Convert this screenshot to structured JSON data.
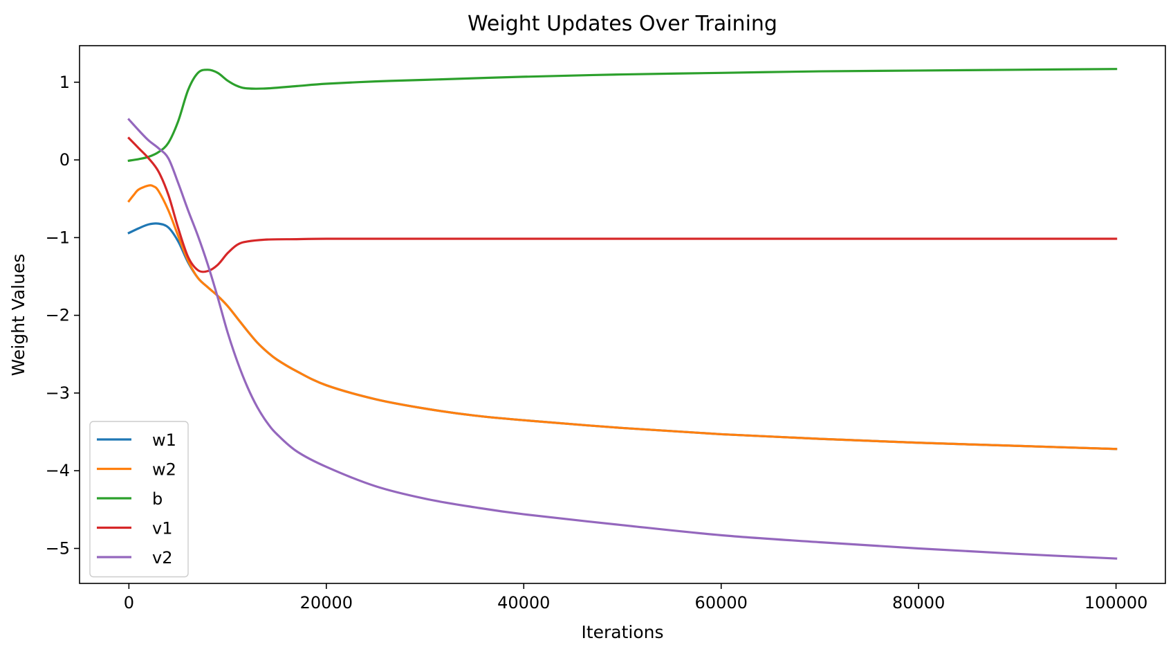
{
  "chart_data": {
    "type": "line",
    "title": "Weight Updates Over Training",
    "xlabel": "Iterations",
    "ylabel": "Weight Values",
    "xlim": [
      -5000,
      105000
    ],
    "ylim": [
      -5.45,
      1.47
    ],
    "x_ticks": [
      0,
      20000,
      40000,
      60000,
      80000,
      100000
    ],
    "x_tick_labels": [
      "0",
      "20000",
      "40000",
      "60000",
      "80000",
      "100000"
    ],
    "y_ticks": [
      1,
      0,
      -1,
      -2,
      -3,
      -4,
      -5
    ],
    "y_tick_labels": [
      "1",
      "0",
      "−1",
      "−2",
      "−3",
      "−4",
      "−5"
    ],
    "grid": false,
    "legend_position": "lower left",
    "series": [
      {
        "name": "w1",
        "color": "#1f77b4",
        "points": [
          [
            0,
            -0.94
          ],
          [
            1000,
            -0.88
          ],
          [
            2000,
            -0.83
          ],
          [
            3000,
            -0.82
          ],
          [
            4000,
            -0.87
          ],
          [
            5000,
            -1.05
          ],
          [
            6000,
            -1.32
          ],
          [
            7000,
            -1.52
          ],
          [
            8000,
            -1.64
          ],
          [
            9000,
            -1.75
          ],
          [
            10000,
            -1.88
          ],
          [
            11000,
            -2.04
          ],
          [
            12000,
            -2.2
          ],
          [
            13000,
            -2.35
          ],
          [
            14000,
            -2.47
          ],
          [
            15000,
            -2.57
          ],
          [
            17000,
            -2.72
          ],
          [
            20000,
            -2.9
          ],
          [
            25000,
            -3.08
          ],
          [
            30000,
            -3.2
          ],
          [
            35000,
            -3.29
          ],
          [
            40000,
            -3.35
          ],
          [
            50000,
            -3.45
          ],
          [
            60000,
            -3.53
          ],
          [
            70000,
            -3.59
          ],
          [
            80000,
            -3.64
          ],
          [
            90000,
            -3.68
          ],
          [
            100000,
            -3.72
          ]
        ]
      },
      {
        "name": "w2",
        "color": "#ff7f0e",
        "points": [
          [
            0,
            -0.53
          ],
          [
            500,
            -0.45
          ],
          [
            1000,
            -0.38
          ],
          [
            2000,
            -0.33
          ],
          [
            2500,
            -0.34
          ],
          [
            3000,
            -0.4
          ],
          [
            4000,
            -0.65
          ],
          [
            5000,
            -0.98
          ],
          [
            6000,
            -1.3
          ],
          [
            7000,
            -1.52
          ],
          [
            8000,
            -1.64
          ],
          [
            9000,
            -1.75
          ],
          [
            10000,
            -1.88
          ],
          [
            11000,
            -2.04
          ],
          [
            12000,
            -2.2
          ],
          [
            13000,
            -2.35
          ],
          [
            14000,
            -2.47
          ],
          [
            15000,
            -2.57
          ],
          [
            17000,
            -2.72
          ],
          [
            20000,
            -2.9
          ],
          [
            25000,
            -3.08
          ],
          [
            30000,
            -3.2
          ],
          [
            35000,
            -3.29
          ],
          [
            40000,
            -3.35
          ],
          [
            50000,
            -3.45
          ],
          [
            60000,
            -3.53
          ],
          [
            70000,
            -3.59
          ],
          [
            80000,
            -3.64
          ],
          [
            90000,
            -3.68
          ],
          [
            100000,
            -3.72
          ]
        ]
      },
      {
        "name": "b",
        "color": "#2ca02c",
        "points": [
          [
            0,
            -0.01
          ],
          [
            1000,
            0.01
          ],
          [
            2000,
            0.04
          ],
          [
            3000,
            0.1
          ],
          [
            4000,
            0.22
          ],
          [
            5000,
            0.5
          ],
          [
            6000,
            0.9
          ],
          [
            7000,
            1.12
          ],
          [
            8000,
            1.16
          ],
          [
            9000,
            1.12
          ],
          [
            10000,
            1.02
          ],
          [
            11000,
            0.95
          ],
          [
            12000,
            0.92
          ],
          [
            14000,
            0.92
          ],
          [
            17000,
            0.95
          ],
          [
            20000,
            0.98
          ],
          [
            25000,
            1.01
          ],
          [
            30000,
            1.03
          ],
          [
            40000,
            1.07
          ],
          [
            50000,
            1.1
          ],
          [
            60000,
            1.12
          ],
          [
            70000,
            1.14
          ],
          [
            80000,
            1.15
          ],
          [
            90000,
            1.16
          ],
          [
            100000,
            1.17
          ]
        ]
      },
      {
        "name": "v1",
        "color": "#d62728",
        "points": [
          [
            0,
            0.28
          ],
          [
            1000,
            0.15
          ],
          [
            2000,
            0.02
          ],
          [
            3000,
            -0.15
          ],
          [
            4000,
            -0.45
          ],
          [
            5000,
            -0.88
          ],
          [
            6000,
            -1.25
          ],
          [
            7000,
            -1.42
          ],
          [
            8000,
            -1.43
          ],
          [
            9000,
            -1.35
          ],
          [
            10000,
            -1.2
          ],
          [
            11000,
            -1.09
          ],
          [
            12000,
            -1.05
          ],
          [
            14000,
            -1.025
          ],
          [
            17000,
            -1.02
          ],
          [
            20000,
            -1.015
          ],
          [
            30000,
            -1.015
          ],
          [
            50000,
            -1.015
          ],
          [
            70000,
            -1.015
          ],
          [
            100000,
            -1.015
          ]
        ]
      },
      {
        "name": "v2",
        "color": "#9467bd",
        "points": [
          [
            0,
            0.52
          ],
          [
            1000,
            0.38
          ],
          [
            2000,
            0.25
          ],
          [
            3000,
            0.15
          ],
          [
            4000,
            0.02
          ],
          [
            5000,
            -0.3
          ],
          [
            6000,
            -0.65
          ],
          [
            7000,
            -0.98
          ],
          [
            8000,
            -1.35
          ],
          [
            9000,
            -1.77
          ],
          [
            10000,
            -2.22
          ],
          [
            11000,
            -2.6
          ],
          [
            12000,
            -2.92
          ],
          [
            13000,
            -3.18
          ],
          [
            14000,
            -3.38
          ],
          [
            15000,
            -3.53
          ],
          [
            17000,
            -3.75
          ],
          [
            20000,
            -3.95
          ],
          [
            25000,
            -4.2
          ],
          [
            30000,
            -4.36
          ],
          [
            35000,
            -4.47
          ],
          [
            40000,
            -4.56
          ],
          [
            50000,
            -4.7
          ],
          [
            60000,
            -4.83
          ],
          [
            70000,
            -4.92
          ],
          [
            80000,
            -5.0
          ],
          [
            90000,
            -5.07
          ],
          [
            100000,
            -5.13
          ]
        ]
      }
    ]
  }
}
